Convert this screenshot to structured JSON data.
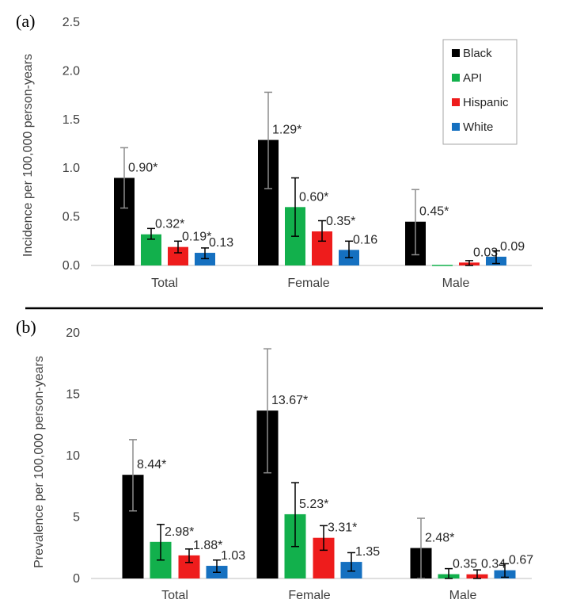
{
  "figure": {
    "colors": {
      "Black": "#000000",
      "API": "#12b04c",
      "Hispanic": "#ee1c1c",
      "White": "#1570c0",
      "axis": "#bfbfbf",
      "err_black": "#8c8c8c",
      "err_other": "#000000"
    }
  },
  "chart_data": [
    {
      "panel": "(a)",
      "type": "bar",
      "title": "",
      "ylabel": "Incidence per 100,000 person-years",
      "xlabel": "",
      "ylim": [
        0,
        2.5
      ],
      "yticks": [
        "0.0",
        "0.5",
        "1.0",
        "1.5",
        "2.0",
        "2.5"
      ],
      "categories": [
        "Total",
        "Female",
        "Male"
      ],
      "series": [
        {
          "name": "Black",
          "values": [
            0.9,
            1.29,
            0.45
          ],
          "err_low": [
            0.59,
            0.79,
            0.11
          ],
          "err_high": [
            1.21,
            1.78,
            0.78
          ],
          "labels": [
            "0.90*",
            "1.29*",
            "0.45*"
          ]
        },
        {
          "name": "API",
          "values": [
            0.32,
            0.6,
            0.0
          ],
          "err_low": [
            0.27,
            0.3,
            0.0
          ],
          "err_high": [
            0.38,
            0.9,
            0.0
          ],
          "labels": [
            "0.32*",
            "0.60*",
            ""
          ]
        },
        {
          "name": "Hispanic",
          "values": [
            0.19,
            0.35,
            0.03
          ],
          "err_low": [
            0.13,
            0.25,
            0.0
          ],
          "err_high": [
            0.25,
            0.46,
            0.05
          ],
          "labels": [
            "0.19*",
            "0.35*",
            "0.03"
          ]
        },
        {
          "name": "White",
          "values": [
            0.13,
            0.16,
            0.09
          ],
          "err_low": [
            0.07,
            0.08,
            0.02
          ],
          "err_high": [
            0.18,
            0.25,
            0.15
          ],
          "labels": [
            "0.13",
            "0.16",
            "0.09"
          ]
        }
      ],
      "legend": {
        "position": "top-right",
        "entries": [
          "Black",
          "API",
          "Hispanic",
          "White"
        ]
      }
    },
    {
      "panel": "(b)",
      "type": "bar",
      "title": "",
      "ylabel": "Prevalence per 100,000 person-years",
      "xlabel": "",
      "ylim": [
        0,
        20
      ],
      "yticks": [
        "0",
        "5",
        "10",
        "15",
        "20"
      ],
      "categories": [
        "Total",
        "Female",
        "Male"
      ],
      "series": [
        {
          "name": "Black",
          "values": [
            8.44,
            13.67,
            2.48
          ],
          "err_low": [
            5.5,
            8.6,
            0.0
          ],
          "err_high": [
            11.3,
            18.7,
            4.9
          ],
          "labels": [
            "8.44*",
            "13.67*",
            "2.48*"
          ]
        },
        {
          "name": "API",
          "values": [
            2.98,
            5.23,
            0.35
          ],
          "err_low": [
            1.5,
            2.6,
            0.0
          ],
          "err_high": [
            4.4,
            7.8,
            0.8
          ],
          "labels": [
            "2.98*",
            "5.23*",
            "0.35"
          ]
        },
        {
          "name": "Hispanic",
          "values": [
            1.88,
            3.31,
            0.34
          ],
          "err_low": [
            1.3,
            2.3,
            0.0
          ],
          "err_high": [
            2.4,
            4.3,
            0.7
          ],
          "labels": [
            "1.88*",
            "3.31*",
            "0.34"
          ]
        },
        {
          "name": "White",
          "values": [
            1.03,
            1.35,
            0.67
          ],
          "err_low": [
            0.5,
            0.6,
            0.1
          ],
          "err_high": [
            1.5,
            2.1,
            1.2
          ],
          "labels": [
            "1.03",
            "1.35",
            "0.67"
          ]
        }
      ]
    }
  ]
}
